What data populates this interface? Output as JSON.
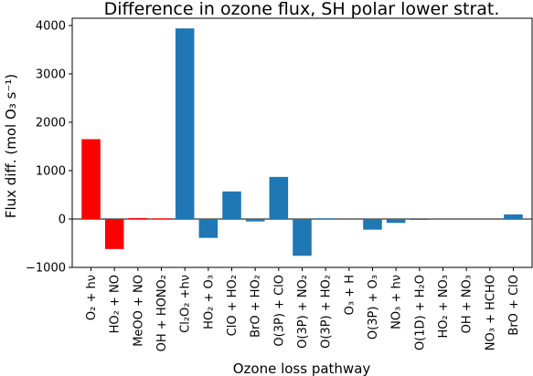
{
  "chart_data": {
    "type": "bar",
    "title": "Difference in ozone flux, SH polar lower strat.",
    "xlabel": "Ozone loss pathway",
    "ylabel": "Flux diff. (mol O₃ s⁻¹)",
    "ylim": [
      -1000,
      4150
    ],
    "yticks": [
      -1000,
      0,
      1000,
      2000,
      3000,
      4000
    ],
    "ytick_labels": [
      "−1000",
      "0",
      "1000",
      "2000",
      "3000",
      "4000"
    ],
    "grid": false,
    "categories": [
      "O₂ + hν",
      "HO₂ + NO",
      "MeOO + NO",
      "OH + HONO₂",
      "Cl₂O₂ +hν",
      "HO₂ + O₃",
      "ClO + HO₂",
      "BrO + HO₂",
      "O(3P) + ClO",
      "O(3P) + NO₂",
      "O(3P) + HO₂",
      "O₃ + H",
      "O(3P) + O₃",
      "NO₃ + hν",
      "O(1D) + H₂O",
      "HO₂ + NO₃",
      "OH + NO₃",
      "NO₃ + HCHO",
      "BrO + ClO"
    ],
    "values": [
      1650,
      -620,
      20,
      15,
      3940,
      -390,
      570,
      -50,
      870,
      -760,
      15,
      0,
      -220,
      -80,
      -20,
      0,
      0,
      0,
      95
    ],
    "colors": [
      "#ff0000",
      "#ff0000",
      "#ff0000",
      "#ff0000",
      "#1f77b4",
      "#1f77b4",
      "#1f77b4",
      "#1f77b4",
      "#1f77b4",
      "#1f77b4",
      "#1f77b4",
      "#1f77b4",
      "#1f77b4",
      "#1f77b4",
      "#1f77b4",
      "#1f77b4",
      "#1f77b4",
      "#1f77b4",
      "#1f77b4"
    ]
  }
}
